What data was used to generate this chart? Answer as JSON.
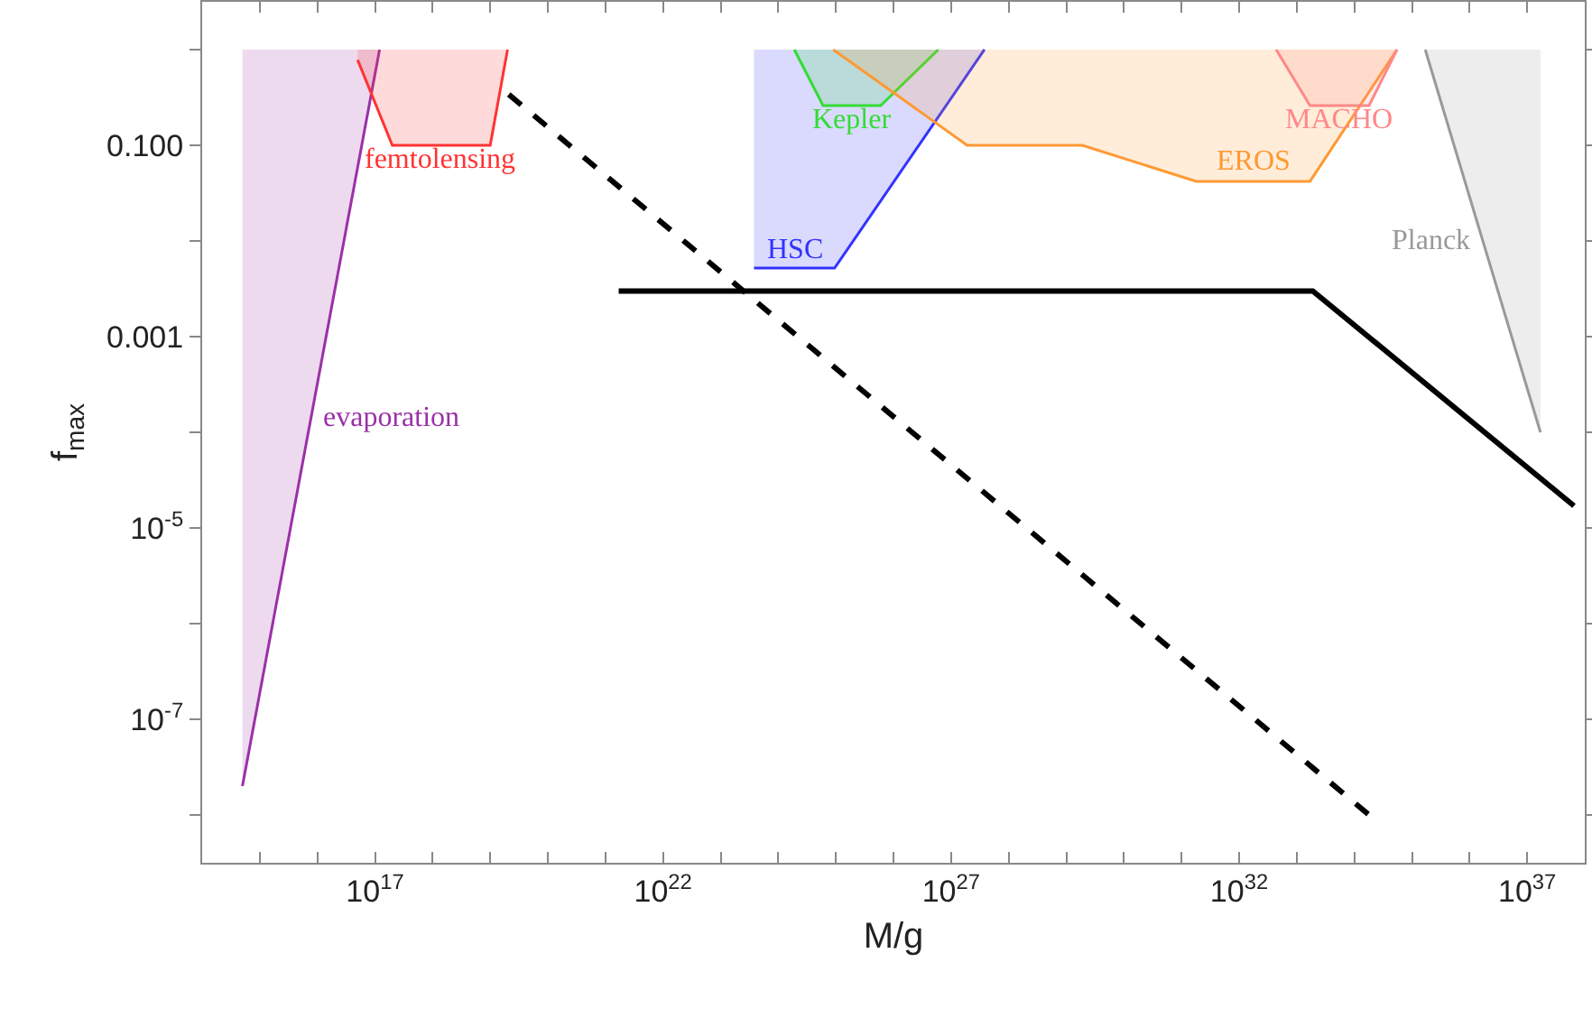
{
  "chart_data": {
    "type": "line",
    "xlabel": "M/g",
    "ylabel": "f$_{max}$",
    "log": "xy",
    "grid": false,
    "legend": false,
    "marker": "none",
    "xlim": [
      100000000000000.0,
      1e+38
    ],
    "ylim": [
      3.16e-09,
      3.16
    ],
    "xticks": [
      {
        "value": 1000000000000000.0,
        "label": null
      },
      {
        "value": 1e+16,
        "label": null
      },
      {
        "value": 1e+17,
        "label": "10$^{17}$"
      },
      {
        "value": 1e+18,
        "label": null
      },
      {
        "value": 1e+19,
        "label": null
      },
      {
        "value": 1e+20,
        "label": null
      },
      {
        "value": 1e+21,
        "label": null
      },
      {
        "value": 1e+22,
        "label": "10$^{22}$"
      },
      {
        "value": 1e+23,
        "label": null
      },
      {
        "value": 1e+24,
        "label": null
      },
      {
        "value": 1e+25,
        "label": null
      },
      {
        "value": 1e+26,
        "label": null
      },
      {
        "value": 1e+27,
        "label": "10$^{27}$"
      },
      {
        "value": 1e+28,
        "label": null
      },
      {
        "value": 1e+29,
        "label": null
      },
      {
        "value": 1e+30,
        "label": null
      },
      {
        "value": 1e+31,
        "label": null
      },
      {
        "value": 1e+32,
        "label": "10$^{32}$"
      },
      {
        "value": 1e+33,
        "label": null
      },
      {
        "value": 1e+34,
        "label": null
      },
      {
        "value": 1e+35,
        "label": null
      },
      {
        "value": 1e+36,
        "label": null
      },
      {
        "value": 1e+37,
        "label": "10$^{37}$"
      },
      {
        "value": 1e+38,
        "label": null
      }
    ],
    "yticks": [
      {
        "value": 1,
        "label": null
      },
      {
        "value": 0.1,
        "label": "0.100"
      },
      {
        "value": 0.01,
        "label": null
      },
      {
        "value": 0.001,
        "label": "0.001"
      },
      {
        "value": 0.0001,
        "label": null
      },
      {
        "value": 1e-05,
        "label": "10$^{-5}$"
      },
      {
        "value": 1e-06,
        "label": null
      },
      {
        "value": 1e-07,
        "label": "10$^{-7}$"
      },
      {
        "value": 1e-08,
        "label": null
      }
    ],
    "series": [
      {
        "name": "evaporation",
        "color": "#9b30a8",
        "x": [
          500000000000000.0,
          1.2e+17
        ],
        "values": [
          2e-08,
          1
        ],
        "lower": [
          2e-08,
          1
        ],
        "upper": [
          1,
          1
        ]
      },
      {
        "name": "femtolensing",
        "color": "#ff3333",
        "x": [
          5e+16,
          2e+17,
          1e+19,
          2e+19
        ],
        "values": [
          0.78,
          0.1,
          0.1,
          1
        ],
        "lower": [
          0.78,
          0.1,
          0.1,
          1
        ],
        "upper": [
          1,
          1,
          1,
          1
        ]
      },
      {
        "name": "HSC",
        "color": "#3333ff",
        "x": [
          3.8e+23,
          9.5e+24,
          3.8e+27
        ],
        "values": [
          0.0052,
          0.0052,
          1
        ],
        "lower": [
          0.0052,
          0.0052,
          1
        ],
        "upper": [
          1,
          1,
          1
        ]
      },
      {
        "name": "Kepler",
        "color": "#33dd33",
        "x": [
          1.9e+24,
          6e+24,
          6e+25,
          6e+26
        ],
        "values": [
          1,
          0.26,
          0.26,
          1
        ],
        "lower": [
          1,
          0.26,
          0.26,
          1
        ],
        "upper": [
          1,
          1,
          1,
          1
        ]
      },
      {
        "name": "EROS",
        "color": "#ff9933",
        "x": [
          9e+24,
          1.9e+27,
          1.9e+29,
          1.8e+31,
          1.7e+33,
          5.5e+34
        ],
        "values": [
          1,
          0.1,
          0.1,
          0.042,
          0.042,
          1
        ],
        "lower": [
          1,
          0.1,
          0.1,
          0.042,
          0.042,
          1
        ],
        "upper": [
          1,
          1,
          1,
          1,
          1,
          1
        ]
      },
      {
        "name": "MACHO",
        "color": "#ff8888",
        "x": [
          4.4e+32,
          1.7e+33,
          1.8e+34,
          5.5e+34
        ],
        "values": [
          1,
          0.26,
          0.26,
          1
        ],
        "lower": [
          1,
          0.26,
          0.26,
          1
        ],
        "upper": [
          1,
          1,
          1,
          1
        ]
      },
      {
        "name": "Planck",
        "color": "#999999",
        "x": [
          1.7e+35,
          1.7e+37
        ],
        "values": [
          1,
          0.0001
        ],
        "lower": [
          1,
          0.0001
        ],
        "upper": [
          1,
          1
        ]
      },
      {
        "color": "#000000",
        "line_style": "solid",
        "x": [
          1.7e+21,
          1.9e+33,
          6.5e+37
        ],
        "values": [
          0.003,
          0.003,
          1.7e-05
        ]
      },
      {
        "color": "#000000",
        "line_style": "dashed",
        "x": [
          2.1e+19,
          1.8e+34
        ],
        "values": [
          0.34,
          1e-08
        ]
      }
    ]
  }
}
